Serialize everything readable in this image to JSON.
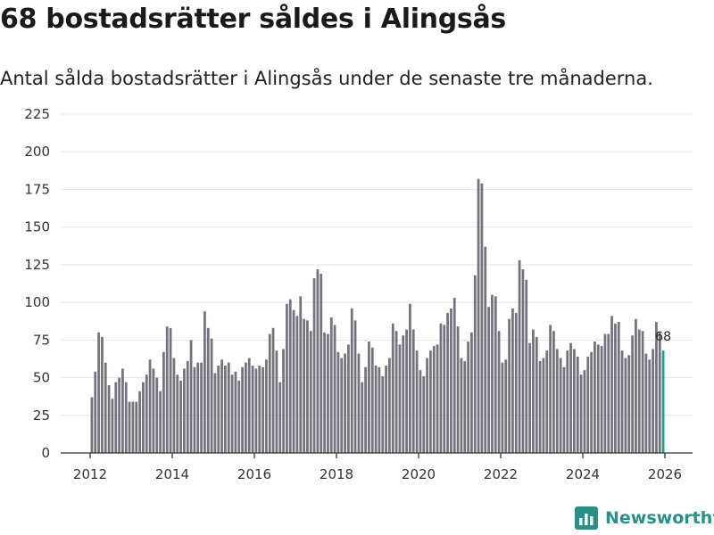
{
  "header": {
    "title": "68 bostadsrätter såldes i Alingsås",
    "subtitle": "Antal sålda bostadsrätter i Alingsås under de senaste tre månaderna."
  },
  "branding": {
    "name": "Newsworthy",
    "color": "#2a8f87"
  },
  "colors": {
    "bar": "#74737c",
    "highlight": "#1f9f94",
    "grid": "#e4e4e4",
    "axis": "#333333"
  },
  "chart_data": {
    "type": "bar",
    "title": "68 bostadsrätter såldes i Alingsås",
    "subtitle": "Antal sålda bostadsrätter i Alingsås under de senaste tre månaderna.",
    "xlabel": "",
    "ylabel": "",
    "frequency": "monthly",
    "start": "2012-01",
    "end": "2025-12",
    "ylim": [
      0,
      225
    ],
    "yticks": [
      0,
      25,
      50,
      75,
      100,
      125,
      150,
      175,
      200,
      225
    ],
    "xticks": [
      "2012",
      "2014",
      "2016",
      "2018",
      "2020",
      "2022",
      "2024",
      "2026"
    ],
    "grid": true,
    "highlight_last": true,
    "annotation": "68",
    "values": [
      37,
      54,
      80,
      77,
      60,
      45,
      36,
      47,
      50,
      56,
      47,
      34,
      34,
      34,
      41,
      47,
      52,
      62,
      56,
      50,
      41,
      67,
      84,
      83,
      63,
      52,
      48,
      56,
      61,
      75,
      57,
      60,
      60,
      94,
      83,
      76,
      53,
      58,
      62,
      58,
      60,
      52,
      54,
      48,
      57,
      60,
      63,
      58,
      56,
      58,
      57,
      62,
      79,
      83,
      68,
      47,
      69,
      99,
      102,
      95,
      91,
      104,
      89,
      88,
      81,
      116,
      122,
      119,
      80,
      79,
      90,
      85,
      67,
      63,
      66,
      72,
      96,
      88,
      66,
      47,
      57,
      74,
      70,
      58,
      57,
      51,
      58,
      63,
      86,
      81,
      72,
      78,
      82,
      99,
      82,
      68,
      55,
      51,
      63,
      68,
      71,
      72,
      86,
      85,
      93,
      96,
      103,
      84,
      63,
      61,
      74,
      80,
      118,
      182,
      179,
      137,
      97,
      105,
      104,
      81,
      60,
      62,
      89,
      96,
      93,
      128,
      122,
      115,
      73,
      82,
      77,
      61,
      63,
      68,
      85,
      81,
      69,
      63,
      57,
      68,
      73,
      69,
      64,
      52,
      55,
      64,
      67,
      74,
      72,
      71,
      79,
      79,
      91,
      86,
      87,
      68,
      63,
      65,
      78,
      89,
      82,
      81,
      66,
      62,
      69,
      87,
      80,
      68
    ]
  }
}
